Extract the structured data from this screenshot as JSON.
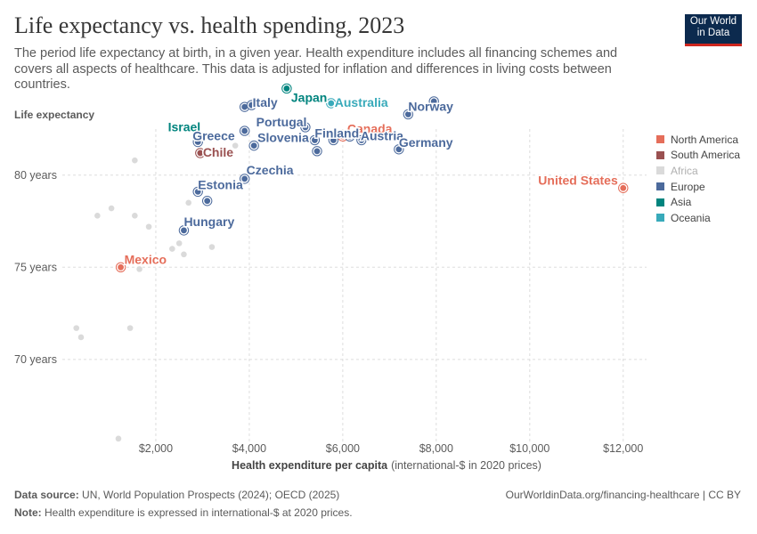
{
  "header": {
    "title": "Life expectancy vs. health spending, 2023",
    "subtitle": "The period life expectancy at birth, in a given year. Health expenditure includes all financing schemes and covers all aspects of healthcare. This data is adjusted for inflation and differences in living costs between countries.",
    "logo_line1": "Our World",
    "logo_line2": "in Data"
  },
  "footer": {
    "source_label": "Data source:",
    "source_text": "UN, World Population Prospects (2024); OECD (2025)",
    "note_label": "Note:",
    "note_text": "Health expenditure is expressed in international-$ at 2020 prices.",
    "url_text": "OurWorldinData.org/financing-healthcare | CC BY"
  },
  "colors": {
    "North America": "#e56e5a",
    "South America": "#9a5151",
    "Africa": "#dadada",
    "Europe": "#4c6a9c",
    "Asia": "#00847e",
    "Oceania": "#38aaba"
  },
  "chart_data": {
    "type": "scatter",
    "ylabel": "Life expectancy",
    "xlabel": "Health expenditure per capita",
    "xlabel_unit": "(international-$ in 2020 prices)",
    "xlim": [
      0,
      12500
    ],
    "ylim": [
      65.5,
      82.5
    ],
    "x_ticks": [
      {
        "value": 2000,
        "label": "$2,000"
      },
      {
        "value": 4000,
        "label": "$4,000"
      },
      {
        "value": 6000,
        "label": "$6,000"
      },
      {
        "value": 8000,
        "label": "$8,000"
      },
      {
        "value": 10000,
        "label": "$10,000"
      },
      {
        "value": 12000,
        "label": "$12,000"
      }
    ],
    "y_ticks": [
      {
        "value": 70,
        "label": "70 years"
      },
      {
        "value": 75,
        "label": "75 years"
      },
      {
        "value": 80,
        "label": "80 years"
      }
    ],
    "legend": [
      "North America",
      "South America",
      "Africa",
      "Europe",
      "Asia",
      "Oceania"
    ],
    "legend_position": "right",
    "points": [
      {
        "label": "United States",
        "region": "North America",
        "x": 12000,
        "y": 79.3
      },
      {
        "label": "Canada",
        "region": "North America",
        "x": 6000,
        "y": 82.1
      },
      {
        "label": "Mexico",
        "region": "North America",
        "x": 1250,
        "y": 75.0
      },
      {
        "label": "Chile",
        "region": "South America",
        "x": 2950,
        "y": 81.2
      },
      {
        "label": "Japan",
        "region": "Asia",
        "x": 4800,
        "y": 84.7
      },
      {
        "label": "Israel",
        "region": "Asia",
        "x": 2900,
        "y": 82.0
      },
      {
        "label": "Australia",
        "region": "Oceania",
        "x": 5750,
        "y": 83.9
      },
      {
        "label": "Italy",
        "region": "Europe",
        "x": 3900,
        "y": 83.7
      },
      {
        "label": "Portugal",
        "region": "Europe",
        "x": 3900,
        "y": 82.4
      },
      {
        "label": "Greece",
        "region": "Europe",
        "x": 2900,
        "y": 81.8
      },
      {
        "label": "Slovenia",
        "region": "Europe",
        "x": 4100,
        "y": 81.6
      },
      {
        "label": "Norway",
        "region": "Europe",
        "x": 7400,
        "y": 83.3
      },
      {
        "label": "Finland",
        "region": "Europe",
        "x": 5400,
        "y": 81.9
      },
      {
        "label": "Austria",
        "region": "Europe",
        "x": 6400,
        "y": 81.9
      },
      {
        "label": "Germany",
        "region": "Europe",
        "x": 7200,
        "y": 81.4
      },
      {
        "label": "Estonia",
        "region": "Europe",
        "x": 2900,
        "y": 79.1
      },
      {
        "label": "Czechia",
        "region": "Europe",
        "x": 3900,
        "y": 79.8
      },
      {
        "label": "Hungary",
        "region": "Europe",
        "x": 2600,
        "y": 77.0
      },
      {
        "label": "",
        "region": "Europe",
        "x": 4050,
        "y": 83.8
      },
      {
        "label": "",
        "region": "Europe",
        "x": 5200,
        "y": 82.6
      },
      {
        "label": "",
        "region": "Europe",
        "x": 5450,
        "y": 81.3
      },
      {
        "label": "",
        "region": "Europe",
        "x": 5800,
        "y": 81.9
      },
      {
        "label": "",
        "region": "Europe",
        "x": 6150,
        "y": 82.1
      },
      {
        "label": "",
        "region": "Europe",
        "x": 3100,
        "y": 78.6
      },
      {
        "label": "",
        "region": "Europe",
        "x": 7950,
        "y": 84.0
      },
      {
        "label": "",
        "region": "Africa",
        "x": 1550,
        "y": 80.8
      },
      {
        "label": "",
        "region": "Africa",
        "x": 750,
        "y": 77.8
      },
      {
        "label": "",
        "region": "Africa",
        "x": 1050,
        "y": 78.2
      },
      {
        "label": "",
        "region": "Africa",
        "x": 1550,
        "y": 77.8
      },
      {
        "label": "",
        "region": "Africa",
        "x": 1850,
        "y": 77.2
      },
      {
        "label": "",
        "region": "Africa",
        "x": 2500,
        "y": 76.3
      },
      {
        "label": "",
        "region": "Africa",
        "x": 2350,
        "y": 76.0
      },
      {
        "label": "",
        "region": "Africa",
        "x": 2600,
        "y": 75.7
      },
      {
        "label": "",
        "region": "Africa",
        "x": 3200,
        "y": 76.1
      },
      {
        "label": "",
        "region": "Africa",
        "x": 2700,
        "y": 78.5
      },
      {
        "label": "",
        "region": "Africa",
        "x": 1650,
        "y": 74.9
      },
      {
        "label": "",
        "region": "Africa",
        "x": 300,
        "y": 71.7
      },
      {
        "label": "",
        "region": "Africa",
        "x": 400,
        "y": 71.2
      },
      {
        "label": "",
        "region": "Africa",
        "x": 1450,
        "y": 71.7
      },
      {
        "label": "",
        "region": "Africa",
        "x": 1200,
        "y": 65.7
      },
      {
        "label": "",
        "region": "Africa",
        "x": 3700,
        "y": 81.6
      }
    ]
  }
}
